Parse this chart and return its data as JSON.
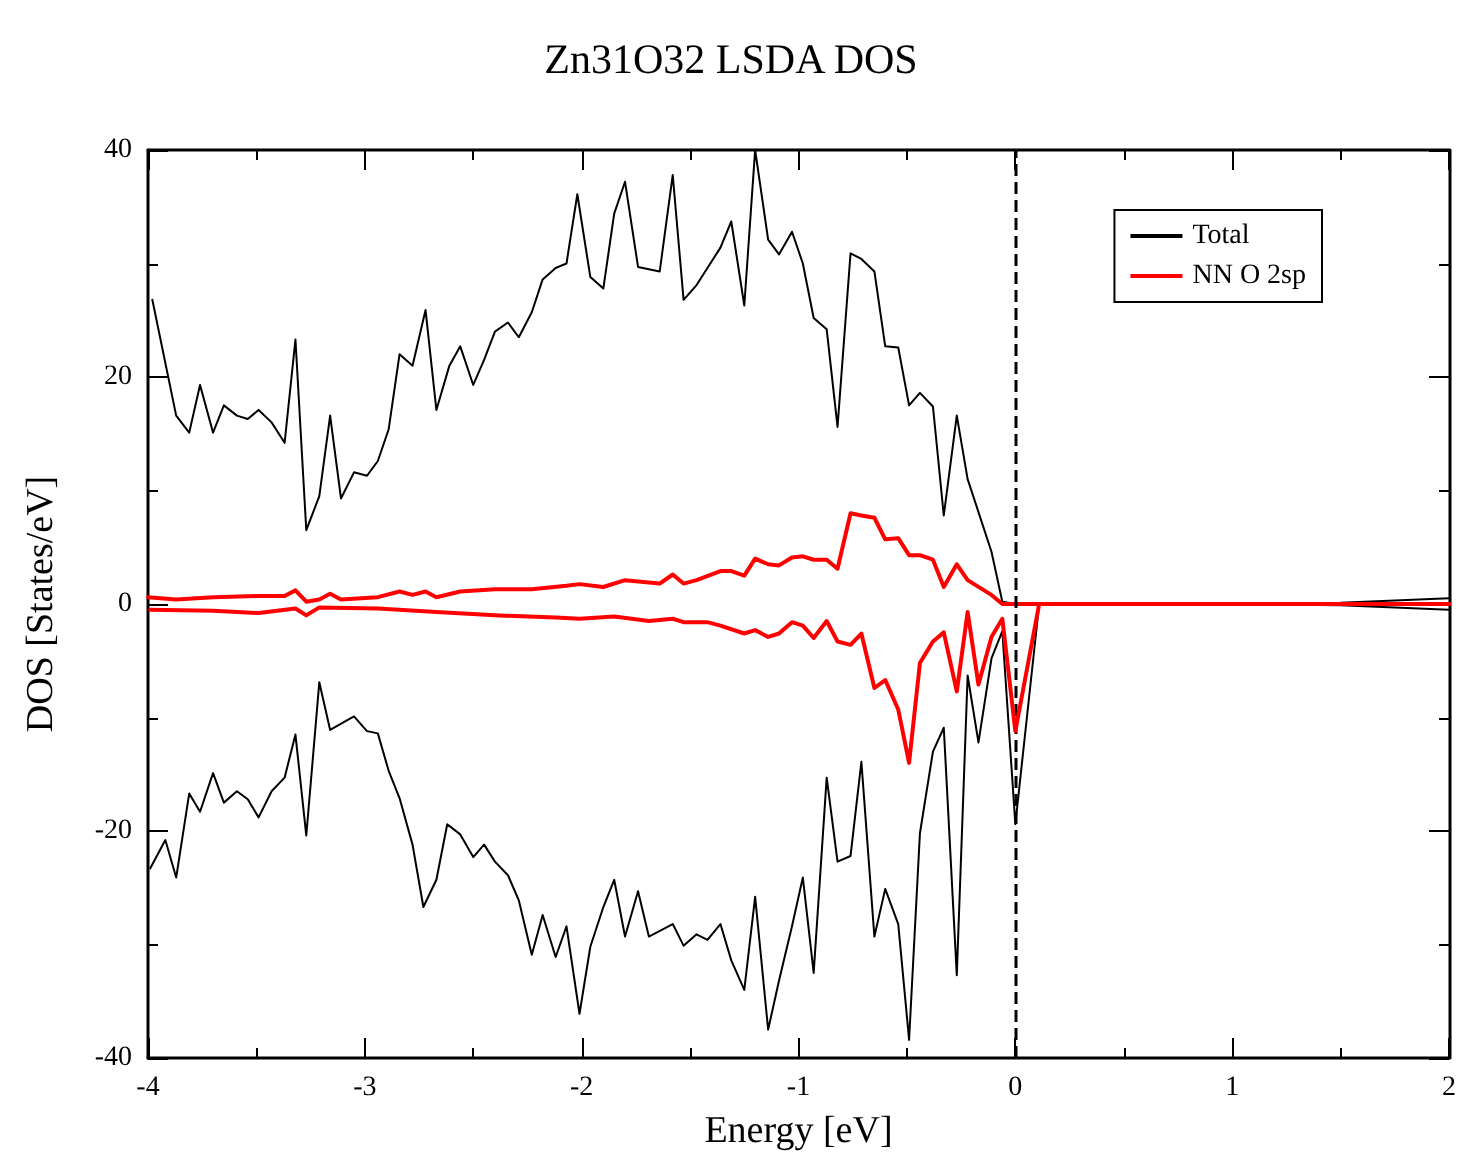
{
  "chart_data": {
    "type": "line",
    "title": "Zn31O32 LSDA DOS",
    "xlabel": "Energy [eV]",
    "ylabel": "DOS [States/eV]",
    "xlim": [
      -4,
      2
    ],
    "ylim": [
      -40,
      40
    ],
    "xticks": [
      -4,
      -3,
      -2,
      -1,
      0,
      1,
      2
    ],
    "yticks": [
      -40,
      -20,
      0,
      20,
      40
    ],
    "grid": false,
    "legend": "top right",
    "marker": "none",
    "line_style": "solid",
    "ref_lines": [
      {
        "axis": "x",
        "value": 0,
        "color": "#000000",
        "line_style": "dashed"
      }
    ],
    "series": [
      {
        "name": "Total",
        "color": "#000000",
        "x": [
          -3.98,
          -3.87,
          -3.81,
          -3.76,
          -3.7,
          -3.65,
          -3.59,
          -3.54,
          -3.49,
          -3.43,
          -3.37,
          -3.32,
          -3.27,
          -3.21,
          -3.16,
          -3.11,
          -3.05,
          -2.99,
          -2.94,
          -2.89,
          -2.84,
          -2.78,
          -2.72,
          -2.67,
          -2.61,
          -2.56,
          -2.5,
          -2.45,
          -2.4,
          -2.34,
          -2.29,
          -2.23,
          -2.18,
          -2.12,
          -2.07,
          -2.02,
          -1.96,
          -1.9,
          -1.85,
          -1.8,
          -1.74,
          -1.64,
          -1.58,
          -1.53,
          -1.47,
          -1.42,
          -1.36,
          -1.31,
          -1.25,
          -1.2,
          -1.14,
          -1.09,
          -1.03,
          -0.98,
          -0.93,
          -0.87,
          -0.82,
          -0.76,
          -0.71,
          -0.65,
          -0.6,
          -0.54,
          -0.49,
          -0.44,
          -0.38,
          -0.33,
          -0.27,
          -0.22,
          -0.17,
          -0.11,
          -0.06,
          0,
          0.5,
          1,
          1.5,
          2
        ],
        "values": [
          26.8,
          16.6,
          15.1,
          19.3,
          15.1,
          17.5,
          16.6,
          16.3,
          17.1,
          16,
          14.2,
          23.3,
          6.5,
          9.5,
          16.6,
          9.3,
          11.6,
          11.3,
          12.6,
          15.4,
          22,
          21,
          25.9,
          17.1,
          21,
          22.7,
          19.3,
          21.5,
          24,
          24.8,
          23.5,
          25.7,
          28.6,
          29.6,
          30,
          36.1,
          28.8,
          27.8,
          34.4,
          37.2,
          29.7,
          29.3,
          37.8,
          26.8,
          28.1,
          29.6,
          31.4,
          33.7,
          26.3,
          40,
          32.1,
          30.8,
          32.8,
          30,
          25.2,
          24.2,
          15.6,
          30.9,
          30.4,
          29.3,
          22.7,
          22.6,
          17.5,
          18.6,
          17.4,
          7.8,
          16.6,
          11,
          8.1,
          4.6,
          0.2,
          0,
          0,
          0,
          0.1,
          0.5
        ]
      },
      {
        "color": "#000000",
        "x": [
          -3.99,
          -3.92,
          -3.87,
          -3.81,
          -3.76,
          -3.7,
          -3.65,
          -3.59,
          -3.54,
          -3.49,
          -3.43,
          -3.37,
          -3.32,
          -3.27,
          -3.21,
          -3.16,
          -3.05,
          -2.99,
          -2.94,
          -2.89,
          -2.84,
          -2.78,
          -2.73,
          -2.67,
          -2.62,
          -2.56,
          -2.5,
          -2.45,
          -2.4,
          -2.34,
          -2.29,
          -2.23,
          -2.18,
          -2.12,
          -2.07,
          -2.01,
          -1.96,
          -1.9,
          -1.85,
          -1.8,
          -1.74,
          -1.69,
          -1.58,
          -1.53,
          -1.47,
          -1.42,
          -1.36,
          -1.31,
          -1.25,
          -1.2,
          -1.14,
          -1.09,
          -1.03,
          -0.98,
          -0.93,
          -0.87,
          -0.82,
          -0.76,
          -0.71,
          -0.65,
          -0.6,
          -0.54,
          -0.49,
          -0.44,
          -0.38,
          -0.33,
          -0.27,
          -0.22,
          -0.17,
          -0.11,
          -0.06,
          0,
          0.11,
          0.5,
          1,
          1.5,
          2
        ],
        "values": [
          -23.3,
          -20.8,
          -24.1,
          -16.7,
          -18.3,
          -14.9,
          -17.5,
          -16.5,
          -17.2,
          -18.8,
          -16.5,
          -15.3,
          -11.5,
          -20.4,
          -6.9,
          -11.1,
          -9.9,
          -11.2,
          -11.4,
          -14.7,
          -17.1,
          -21.2,
          -26.7,
          -24.3,
          -19.4,
          -20.3,
          -22.3,
          -21.2,
          -22.7,
          -23.9,
          -26.1,
          -30.9,
          -27.4,
          -31.1,
          -28.4,
          -36.1,
          -30.2,
          -26.7,
          -24.3,
          -29.3,
          -25.3,
          -29.3,
          -28.2,
          -30.1,
          -29.1,
          -29.6,
          -28.2,
          -31.4,
          -34,
          -25.8,
          -37.5,
          -33.2,
          -28.4,
          -24.1,
          -32.5,
          -15.3,
          -22.7,
          -22.2,
          -13.9,
          -29.3,
          -25.1,
          -28.2,
          -38.4,
          -20.2,
          -13,
          -10.9,
          -32.7,
          -6.3,
          -12.2,
          -4.8,
          -2.4,
          -19.4,
          0,
          0,
          0,
          -0.1,
          -0.5
        ]
      },
      {
        "name": "NN O 2sp",
        "color": "#ff0000",
        "x": [
          -4,
          -3.87,
          -3.7,
          -3.49,
          -3.37,
          -3.32,
          -3.27,
          -3.21,
          -3.16,
          -3.11,
          -2.94,
          -2.84,
          -2.78,
          -2.72,
          -2.67,
          -2.56,
          -2.4,
          -2.23,
          -2.07,
          -2.01,
          -1.9,
          -1.8,
          -1.64,
          -1.58,
          -1.53,
          -1.47,
          -1.36,
          -1.31,
          -1.25,
          -1.2,
          -1.14,
          -1.09,
          -1.03,
          -0.98,
          -0.93,
          -0.87,
          -0.82,
          -0.76,
          -0.71,
          -0.65,
          -0.6,
          -0.54,
          -0.49,
          -0.44,
          -0.38,
          -0.33,
          -0.27,
          -0.22,
          -0.11,
          -0.06,
          0,
          1,
          2
        ],
        "values": [
          0.6,
          0.4,
          0.6,
          0.7,
          0.7,
          1.2,
          0.2,
          0.4,
          0.9,
          0.4,
          0.6,
          1.1,
          0.8,
          1.1,
          0.6,
          1.1,
          1.3,
          1.3,
          1.6,
          1.75,
          1.5,
          2.1,
          1.8,
          2.6,
          1.8,
          2.1,
          2.9,
          2.9,
          2.5,
          4,
          3.5,
          3.4,
          4.1,
          4.2,
          3.9,
          3.9,
          3.1,
          8,
          7.8,
          7.6,
          5.7,
          5.8,
          4.3,
          4.3,
          3.9,
          1.5,
          3.5,
          2.1,
          0.8,
          0,
          0,
          0,
          0
        ]
      },
      {
        "color": "#ff0000",
        "x": [
          -3.99,
          -3.7,
          -3.49,
          -3.32,
          -3.27,
          -3.21,
          -2.94,
          -2.67,
          -2.4,
          -2.12,
          -2.01,
          -1.85,
          -1.69,
          -1.58,
          -1.53,
          -1.42,
          -1.36,
          -1.25,
          -1.2,
          -1.14,
          -1.09,
          -1.03,
          -0.98,
          -0.93,
          -0.87,
          -0.82,
          -0.76,
          -0.71,
          -0.65,
          -0.6,
          -0.54,
          -0.49,
          -0.44,
          -0.38,
          -0.33,
          -0.27,
          -0.22,
          -0.17,
          -0.11,
          -0.06,
          0,
          0.11,
          1,
          2
        ],
        "values": [
          -0.5,
          -0.6,
          -0.8,
          -0.4,
          -1,
          -0.3,
          -0.4,
          -0.7,
          -1,
          -1.2,
          -1.3,
          -1.1,
          -1.5,
          -1.3,
          -1.6,
          -1.6,
          -1.9,
          -2.6,
          -2.3,
          -2.9,
          -2.6,
          -1.6,
          -1.9,
          -3,
          -1.5,
          -3.3,
          -3.6,
          -2.6,
          -7.4,
          -6.7,
          -9.3,
          -14,
          -5.2,
          -3.3,
          -2.5,
          -7.7,
          -0.7,
          -7.1,
          -2.9,
          -1.3,
          -11.2,
          0,
          0,
          0
        ]
      }
    ]
  }
}
